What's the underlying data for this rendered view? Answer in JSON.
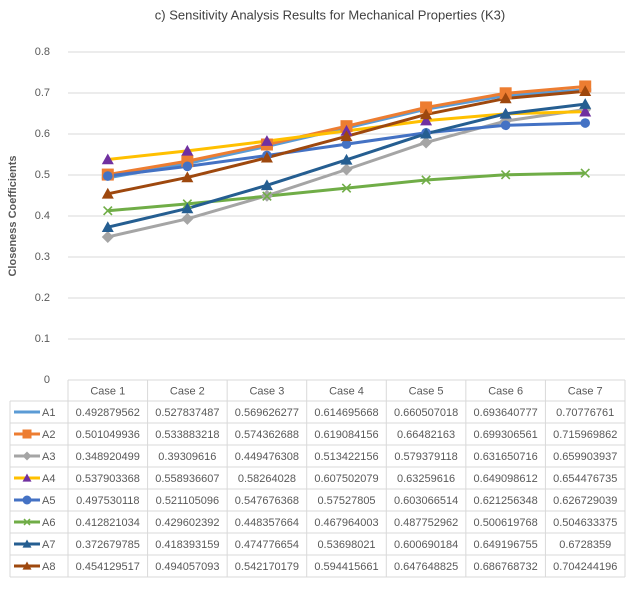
{
  "chart_data": {
    "type": "line",
    "title": "c) Sensitivity Analysis Results for Mechanical Properties (K3)",
    "y_label": "Closeness Coefficients",
    "categories": [
      "Case 1",
      "Case 2",
      "Case 3",
      "Case 4",
      "Case 5",
      "Case 6",
      "Case 7"
    ],
    "ylim": [
      0,
      0.8
    ],
    "yticks": [
      0,
      0.1,
      0.2,
      0.3,
      0.4,
      0.5,
      0.6,
      0.7,
      0.8
    ],
    "grid": true,
    "series": [
      {
        "name": "A1",
        "color": "#5b9bd5",
        "marker": "dash",
        "values": [
          0.492879562,
          0.527837487,
          0.569626277,
          0.614695668,
          0.660507018,
          0.693640777,
          0.70776761
        ]
      },
      {
        "name": "A2",
        "color": "#ed7d31",
        "marker": "square",
        "values": [
          0.501049936,
          0.533883218,
          0.574362688,
          0.619084156,
          0.66482163,
          0.699306561,
          0.715969862
        ]
      },
      {
        "name": "A3",
        "color": "#a5a5a5",
        "marker": "diamond",
        "values": [
          0.348920499,
          0.39309616,
          0.449476308,
          0.513422156,
          0.579379118,
          0.631650716,
          0.659903937
        ]
      },
      {
        "name": "A4",
        "color": "#ffc000",
        "marker": "triangle",
        "marker_color": "#7030a0",
        "values": [
          0.537903368,
          0.558936607,
          0.58264028,
          0.607502079,
          0.63259616,
          0.649098612,
          0.654476735
        ]
      },
      {
        "name": "A5",
        "color": "#4472c4",
        "marker": "circle",
        "values": [
          0.497530118,
          0.521105096,
          0.547676368,
          0.57527805,
          0.603066514,
          0.621256348,
          0.626729039
        ]
      },
      {
        "name": "A6",
        "color": "#70ad47",
        "marker": "x",
        "values": [
          0.412821034,
          0.429602392,
          0.448357664,
          0.467964003,
          0.487752962,
          0.500619768,
          0.504633375
        ]
      },
      {
        "name": "A7",
        "color": "#255e91",
        "marker": "triangle",
        "values": [
          0.372679785,
          0.418393159,
          0.474776654,
          0.53698021,
          0.600690184,
          0.649196755,
          0.6728359
        ]
      },
      {
        "name": "A8",
        "color": "#9e480e",
        "marker": "triangle",
        "values": [
          0.454129517,
          0.494057093,
          0.542170179,
          0.594415661,
          0.647648825,
          0.686768732,
          0.704244196
        ]
      }
    ]
  }
}
